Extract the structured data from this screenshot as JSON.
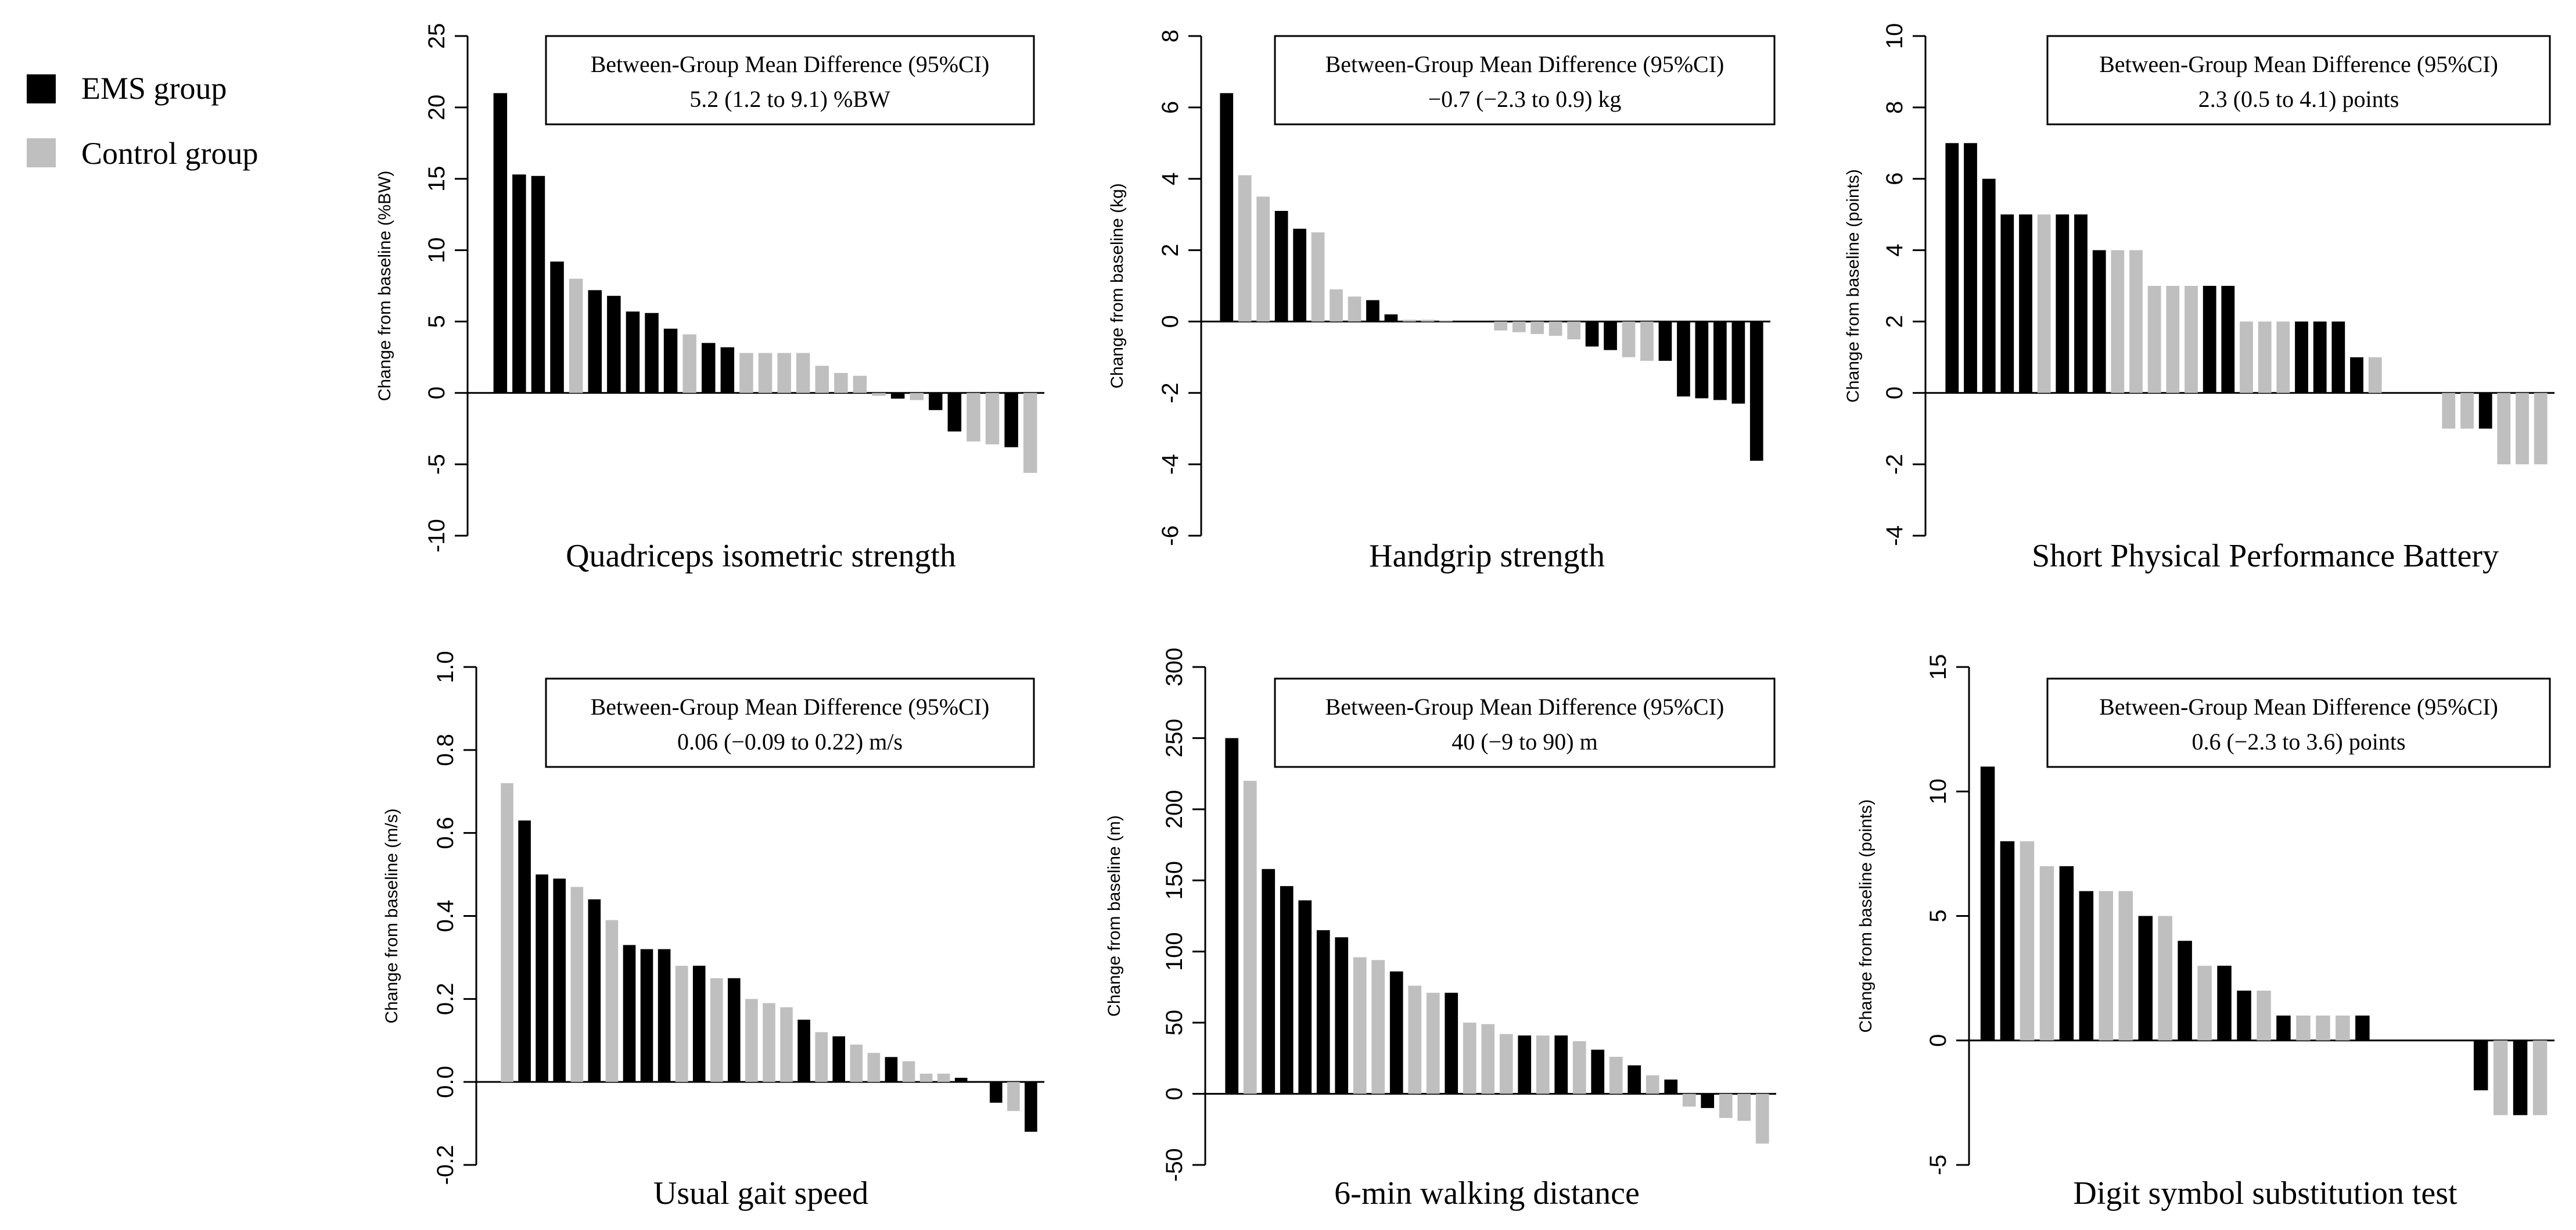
{
  "legend": {
    "items": [
      {
        "label": "EMS group",
        "color": "#000000"
      },
      {
        "label": "Control group",
        "color": "#bfbfbf"
      }
    ]
  },
  "colors": {
    "ems": "#000000",
    "control": "#bfbfbf"
  },
  "chart_data": [
    {
      "type": "bar",
      "title": "Quadriceps isometric strength",
      "ylabel": "Change from baseline (%BW)",
      "ylim": [
        -10,
        25
      ],
      "yticks": [
        -10,
        -5,
        0,
        5,
        10,
        15,
        20,
        25
      ],
      "box_line1": "Between-Group Mean Difference (95%CI)",
      "box_line2": "5.2 (1.2 to 9.1)   %BW",
      "series": [
        {
          "name": "EMS group",
          "indices": [
            0,
            1,
            2,
            3,
            5,
            6,
            7,
            8,
            9,
            11,
            12,
            21,
            23,
            24,
            27
          ]
        },
        {
          "name": "Control group",
          "indices": [
            4,
            10,
            13,
            14,
            15,
            16,
            17,
            18,
            19,
            20,
            22,
            25,
            26,
            28
          ]
        }
      ],
      "values": [
        21,
        15.3,
        15.2,
        9.2,
        8,
        7.2,
        6.8,
        5.7,
        5.6,
        4.5,
        4.1,
        3.5,
        3.2,
        2.8,
        2.8,
        2.8,
        2.8,
        1.9,
        1.4,
        1.2,
        -0.2,
        -0.4,
        -0.5,
        -1.2,
        -2.7,
        -3.4,
        -3.6,
        -3.8,
        -5.6
      ],
      "groups": [
        "EMS",
        "EMS",
        "EMS",
        "EMS",
        "Control",
        "EMS",
        "EMS",
        "EMS",
        "EMS",
        "EMS",
        "Control",
        "EMS",
        "EMS",
        "Control",
        "Control",
        "Control",
        "Control",
        "Control",
        "Control",
        "Control",
        "Control",
        "EMS",
        "Control",
        "EMS",
        "EMS",
        "Control",
        "Control",
        "EMS",
        "Control"
      ]
    },
    {
      "type": "bar",
      "title": "Handgrip strength",
      "ylabel": "Change from baseline (kg)",
      "ylim": [
        -6,
        8
      ],
      "yticks": [
        -6,
        -4,
        -2,
        0,
        2,
        4,
        6,
        8
      ],
      "box_line1": "Between-Group Mean Difference (95%CI)",
      "box_line2": "−0.7 (−2.3 to 0.9) kg",
      "values": [
        6.4,
        4.1,
        3.5,
        3.1,
        2.6,
        2.5,
        0.9,
        0.7,
        0.6,
        0.2,
        0.05,
        0.05,
        0.03,
        0.0,
        0.0,
        -0.25,
        -0.3,
        -0.35,
        -0.4,
        -0.5,
        -0.7,
        -0.8,
        -1.0,
        -1.1,
        -1.1,
        -2.1,
        -2.15,
        -2.2,
        -2.3,
        -3.9
      ],
      "groups": [
        "EMS",
        "Control",
        "Control",
        "EMS",
        "EMS",
        "Control",
        "Control",
        "Control",
        "EMS",
        "EMS",
        "Control",
        "Control",
        "Control",
        "Control",
        "Control",
        "Control",
        "Control",
        "Control",
        "Control",
        "Control",
        "EMS",
        "EMS",
        "Control",
        "Control",
        "EMS",
        "EMS",
        "EMS",
        "EMS",
        "EMS",
        "EMS"
      ]
    },
    {
      "type": "bar",
      "title": "Short Physical Performance Battery",
      "ylabel": "Change from baseline (points)",
      "ylim": [
        -4,
        10
      ],
      "yticks": [
        -4,
        -2,
        0,
        2,
        4,
        6,
        8,
        10
      ],
      "box_line1": "Between-Group Mean Difference (95%CI)",
      "box_line2": "2.3 (0.5 to 4.1) points",
      "values": [
        7,
        7,
        6,
        5,
        5,
        5,
        5,
        5,
        4,
        4,
        4,
        3,
        3,
        3,
        3,
        3,
        2,
        2,
        2,
        2,
        2,
        2,
        1,
        1,
        0,
        0,
        0,
        -1,
        -1,
        -1,
        -2,
        -2,
        -2
      ],
      "groups": [
        "EMS",
        "EMS",
        "EMS",
        "EMS",
        "EMS",
        "Control",
        "EMS",
        "EMS",
        "EMS",
        "Control",
        "Control",
        "Control",
        "Control",
        "Control",
        "EMS",
        "EMS",
        "Control",
        "Control",
        "Control",
        "EMS",
        "EMS",
        "EMS",
        "EMS",
        "Control",
        "Control",
        "Control",
        "Control",
        "Control",
        "Control",
        "EMS",
        "Control",
        "Control",
        "Control"
      ]
    },
    {
      "type": "bar",
      "title": "Usual gait speed",
      "ylabel": "Change from baseline (m/s)",
      "ylim": [
        -0.2,
        1.0
      ],
      "yticks": [
        -0.2,
        0.0,
        0.2,
        0.4,
        0.6,
        0.8,
        1.0
      ],
      "box_line1": "Between-Group Mean Difference (95%CI)",
      "box_line2": "0.06 (−0.09 to 0.22) m/s",
      "values": [
        0.72,
        0.63,
        0.5,
        0.49,
        0.47,
        0.44,
        0.39,
        0.33,
        0.32,
        0.32,
        0.28,
        0.28,
        0.25,
        0.25,
        0.2,
        0.19,
        0.18,
        0.15,
        0.12,
        0.11,
        0.09,
        0.07,
        0.06,
        0.05,
        0.02,
        0.02,
        0.01,
        0.0,
        -0.05,
        -0.07,
        -0.12
      ],
      "groups": [
        "Control",
        "EMS",
        "EMS",
        "EMS",
        "Control",
        "EMS",
        "Control",
        "EMS",
        "EMS",
        "EMS",
        "Control",
        "EMS",
        "Control",
        "EMS",
        "Control",
        "Control",
        "Control",
        "EMS",
        "Control",
        "EMS",
        "Control",
        "Control",
        "EMS",
        "Control",
        "Control",
        "Control",
        "EMS",
        "Control",
        "EMS",
        "Control",
        "EMS"
      ]
    },
    {
      "type": "bar",
      "title": "6-min walking distance",
      "ylabel": "Change from baseline (m)",
      "ylim": [
        -50,
        300
      ],
      "yticks": [
        -50,
        0,
        50,
        100,
        150,
        200,
        250,
        300
      ],
      "box_line1": "Between-Group Mean Difference (95%CI)",
      "box_line2": "40 (−9 to 90) m",
      "values": [
        250,
        220,
        158,
        146,
        136,
        115,
        110,
        96,
        94,
        86,
        76,
        71,
        71,
        50,
        49,
        42,
        41,
        41,
        41,
        37,
        31,
        26,
        20,
        13,
        10,
        -9,
        -10,
        -17,
        -19,
        -35
      ],
      "groups": [
        "EMS",
        "Control",
        "EMS",
        "EMS",
        "EMS",
        "EMS",
        "EMS",
        "Control",
        "Control",
        "EMS",
        "Control",
        "Control",
        "EMS",
        "Control",
        "Control",
        "Control",
        "EMS",
        "Control",
        "EMS",
        "Control",
        "EMS",
        "Control",
        "EMS",
        "Control",
        "EMS",
        "Control",
        "EMS",
        "Control",
        "Control",
        "Control"
      ]
    },
    {
      "type": "bar",
      "title": "Digit symbol substitution test",
      "ylabel": "Change from baseline (points)",
      "ylim": [
        -5,
        15
      ],
      "yticks": [
        -5,
        0,
        5,
        10,
        15
      ],
      "box_line1": "Between-Group Mean Difference (95%CI)",
      "box_line2": "0.6 (−2.3 to 3.6) points",
      "values": [
        11,
        8,
        8,
        7,
        7,
        6,
        6,
        6,
        5,
        5,
        4,
        3,
        3,
        2,
        2,
        1,
        1,
        1,
        1,
        1,
        0,
        0,
        0,
        0,
        0,
        -2,
        -3,
        -3,
        -3
      ],
      "groups": [
        "EMS",
        "EMS",
        "Control",
        "Control",
        "EMS",
        "EMS",
        "Control",
        "Control",
        "EMS",
        "Control",
        "EMS",
        "Control",
        "EMS",
        "EMS",
        "Control",
        "EMS",
        "Control",
        "Control",
        "Control",
        "EMS",
        "Control",
        "Control",
        "Control",
        "Control",
        "Control",
        "EMS",
        "Control",
        "EMS",
        "Control"
      ]
    }
  ]
}
